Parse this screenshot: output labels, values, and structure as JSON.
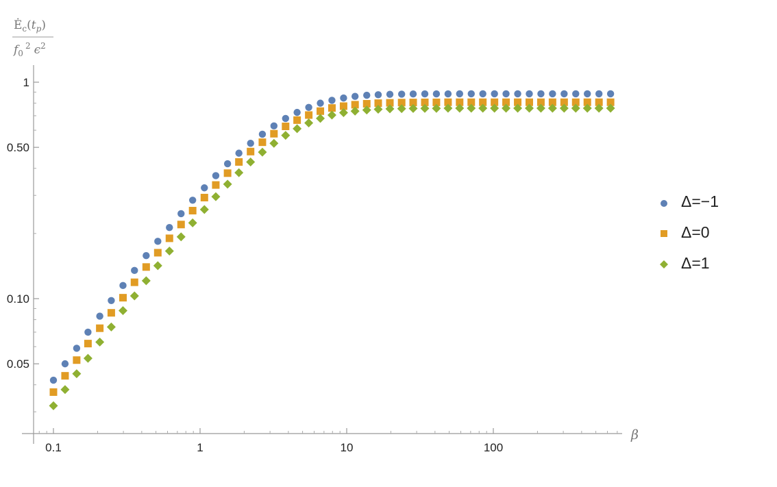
{
  "chart_data": {
    "type": "scatter",
    "x_scale": "log",
    "y_scale": "log",
    "xlabel": "β",
    "ylabel": {
      "numerator": {
        "main": "Ė",
        "sub": "c",
        "paren_open": "(",
        "t": "t",
        "t_sub": "p",
        "paren_close": ")"
      },
      "denominator": {
        "f": "f",
        "f_sub": "0",
        "f_sup": "2",
        "eps": "ϵ",
        "eps_sup": "2"
      }
    },
    "xlim": [
      0.075,
      700
    ],
    "ylim": [
      0.025,
      1.1
    ],
    "x_ticks": [
      {
        "value": 0.1,
        "label": "0.1"
      },
      {
        "value": 1,
        "label": "1"
      },
      {
        "value": 10,
        "label": "10"
      },
      {
        "value": 100,
        "label": "100"
      }
    ],
    "y_ticks": [
      {
        "value": 0.05,
        "label": "0.05"
      },
      {
        "value": 0.1,
        "label": "0.10"
      },
      {
        "value": 0.5,
        "label": "0.50"
      },
      {
        "value": 1,
        "label": "1"
      }
    ],
    "grid": false,
    "legend_position": "right",
    "x": [
      0.1,
      0.12,
      0.144,
      0.172,
      0.207,
      0.248,
      0.298,
      0.357,
      0.429,
      0.515,
      0.618,
      0.742,
      0.89,
      1.07,
      1.28,
      1.54,
      1.84,
      2.21,
      2.66,
      3.19,
      3.83,
      4.59,
      5.51,
      6.61,
      7.93,
      9.52,
      11.4,
      13.7,
      16.4,
      19.7,
      23.7,
      28.4,
      34.1,
      40.9,
      49.1,
      58.9,
      70.7,
      84.8,
      101.8,
      122.1,
      146.6,
      175.9,
      211.1,
      253.3,
      304,
      364.8,
      437.7,
      525.3,
      630.3
    ],
    "series": [
      {
        "name": "Δ=−1",
        "marker": "circle",
        "color": "#5e81b5",
        "values": [
          0.042,
          0.05,
          0.059,
          0.07,
          0.083,
          0.098,
          0.115,
          0.135,
          0.158,
          0.184,
          0.213,
          0.247,
          0.285,
          0.325,
          0.37,
          0.42,
          0.47,
          0.522,
          0.575,
          0.628,
          0.68,
          0.725,
          0.765,
          0.8,
          0.825,
          0.845,
          0.86,
          0.87,
          0.875,
          0.879,
          0.881,
          0.882,
          0.883,
          0.883,
          0.883,
          0.884,
          0.884,
          0.884,
          0.884,
          0.884,
          0.884,
          0.884,
          0.884,
          0.884,
          0.884,
          0.884,
          0.884,
          0.884,
          0.884
        ]
      },
      {
        "name": "Δ=0",
        "marker": "square",
        "color": "#e19c24",
        "values": [
          0.037,
          0.044,
          0.052,
          0.062,
          0.073,
          0.086,
          0.101,
          0.119,
          0.14,
          0.163,
          0.19,
          0.22,
          0.255,
          0.293,
          0.335,
          0.38,
          0.428,
          0.478,
          0.528,
          0.578,
          0.625,
          0.668,
          0.705,
          0.735,
          0.76,
          0.775,
          0.787,
          0.795,
          0.8,
          0.803,
          0.805,
          0.806,
          0.807,
          0.807,
          0.808,
          0.808,
          0.808,
          0.808,
          0.808,
          0.808,
          0.808,
          0.808,
          0.808,
          0.808,
          0.808,
          0.808,
          0.808,
          0.808,
          0.808
        ]
      },
      {
        "name": "Δ=1",
        "marker": "diamond",
        "color": "#8fb032",
        "values": [
          0.032,
          0.038,
          0.045,
          0.053,
          0.063,
          0.074,
          0.088,
          0.103,
          0.121,
          0.142,
          0.166,
          0.193,
          0.224,
          0.258,
          0.296,
          0.338,
          0.382,
          0.428,
          0.475,
          0.522,
          0.568,
          0.61,
          0.648,
          0.68,
          0.705,
          0.723,
          0.735,
          0.744,
          0.75,
          0.753,
          0.755,
          0.756,
          0.757,
          0.757,
          0.758,
          0.758,
          0.758,
          0.758,
          0.758,
          0.758,
          0.758,
          0.758,
          0.758,
          0.758,
          0.758,
          0.758,
          0.758,
          0.758,
          0.758
        ]
      }
    ]
  }
}
